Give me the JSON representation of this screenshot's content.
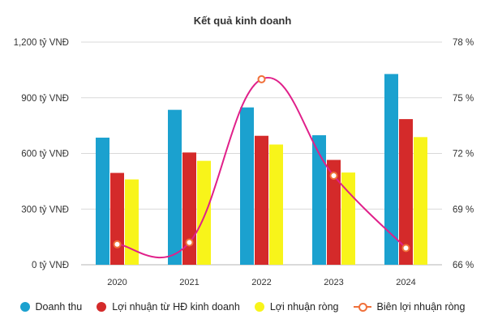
{
  "chart_data": {
    "type": "bar",
    "title": "Kết quả kinh doanh",
    "categories": [
      "2020",
      "2021",
      "2022",
      "2023",
      "2024"
    ],
    "y_left": {
      "ticks": [
        "0 tỷ VNĐ",
        "300 tỷ VNĐ",
        "600 tỷ VNĐ",
        "900 tỷ VNĐ",
        "1,200 tỷ VNĐ"
      ],
      "range": [
        0,
        1200
      ]
    },
    "y_right": {
      "ticks": [
        "66 %",
        "69 %",
        "72 %",
        "75 %",
        "78 %"
      ],
      "range": [
        66,
        78
      ]
    },
    "grid": true,
    "legend_position": "bottom",
    "series": [
      {
        "name": "Doanh thu",
        "type": "bar",
        "axis": "left",
        "color": "#1ba1cf",
        "values": [
          685,
          835,
          848,
          698,
          1028
        ]
      },
      {
        "name": "Lợi nhuận từ HĐ kinh doanh",
        "type": "bar",
        "axis": "left",
        "color": "#d42a2a",
        "values": [
          495,
          605,
          695,
          565,
          785
        ]
      },
      {
        "name": "Lợi nhuận ròng",
        "type": "bar",
        "axis": "left",
        "color": "#f8f41a",
        "values": [
          460,
          560,
          648,
          497,
          688
        ]
      },
      {
        "name": "Biên lợi nhuận ròng",
        "type": "line",
        "axis": "right",
        "color": "#e0208a",
        "marker_color": "#f0703a",
        "values": [
          67.1,
          67.2,
          76.0,
          70.8,
          66.9
        ]
      }
    ]
  }
}
